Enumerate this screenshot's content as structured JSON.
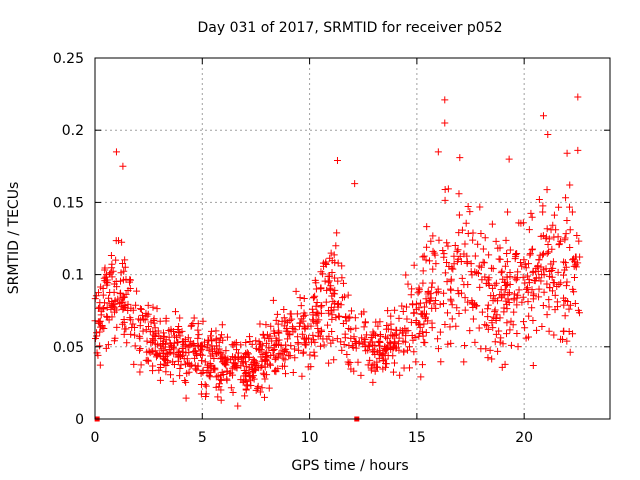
{
  "chart_data": {
    "type": "scatter",
    "title": "Day 031 of 2017, SRMTID for receiver p052",
    "xlabel": "GPS time / hours",
    "ylabel": "SRMTID / TECUs",
    "xlim": [
      0,
      24
    ],
    "ylim": [
      0,
      0.25
    ],
    "x_ticks": [
      0,
      5,
      10,
      15,
      20
    ],
    "x_tick_labels": [
      "0",
      "5",
      "10",
      "15",
      "20"
    ],
    "y_ticks": [
      0,
      0.05,
      0.1,
      0.15,
      0.2,
      0.25
    ],
    "y_tick_labels": [
      "0",
      "0.05",
      "0.1",
      "0.15",
      "0.2",
      "0.25"
    ],
    "grid": true,
    "marker": "plus",
    "series_color": "#ff0000",
    "zero_markers_x": [
      0.1,
      12.2
    ],
    "envelope": {
      "x": [
        0,
        1,
        2,
        3,
        4,
        5,
        6,
        7,
        8,
        9,
        10,
        11,
        12,
        13,
        14,
        15,
        16,
        17,
        18,
        19,
        20,
        21,
        22,
        22.6
      ],
      "mean": [
        0.07,
        0.09,
        0.065,
        0.05,
        0.045,
        0.045,
        0.04,
        0.035,
        0.045,
        0.06,
        0.06,
        0.085,
        0.06,
        0.05,
        0.055,
        0.07,
        0.09,
        0.1,
        0.09,
        0.085,
        0.095,
        0.11,
        0.1,
        0.1
      ],
      "spread": [
        0.025,
        0.04,
        0.025,
        0.02,
        0.02,
        0.025,
        0.02,
        0.02,
        0.02,
        0.025,
        0.025,
        0.035,
        0.025,
        0.02,
        0.02,
        0.03,
        0.04,
        0.045,
        0.045,
        0.04,
        0.045,
        0.05,
        0.05,
        0.045
      ]
    },
    "peaks": [
      {
        "x": 1.0,
        "y": 0.185
      },
      {
        "x": 1.3,
        "y": 0.175
      },
      {
        "x": 11.3,
        "y": 0.179
      },
      {
        "x": 12.1,
        "y": 0.163
      },
      {
        "x": 16.0,
        "y": 0.185
      },
      {
        "x": 16.3,
        "y": 0.205
      },
      {
        "x": 16.3,
        "y": 0.221
      },
      {
        "x": 17.0,
        "y": 0.181
      },
      {
        "x": 19.3,
        "y": 0.18
      },
      {
        "x": 20.9,
        "y": 0.21
      },
      {
        "x": 21.1,
        "y": 0.197
      },
      {
        "x": 22.0,
        "y": 0.184
      },
      {
        "x": 22.5,
        "y": 0.223
      },
      {
        "x": 22.5,
        "y": 0.186
      }
    ],
    "point_count": 1400
  }
}
